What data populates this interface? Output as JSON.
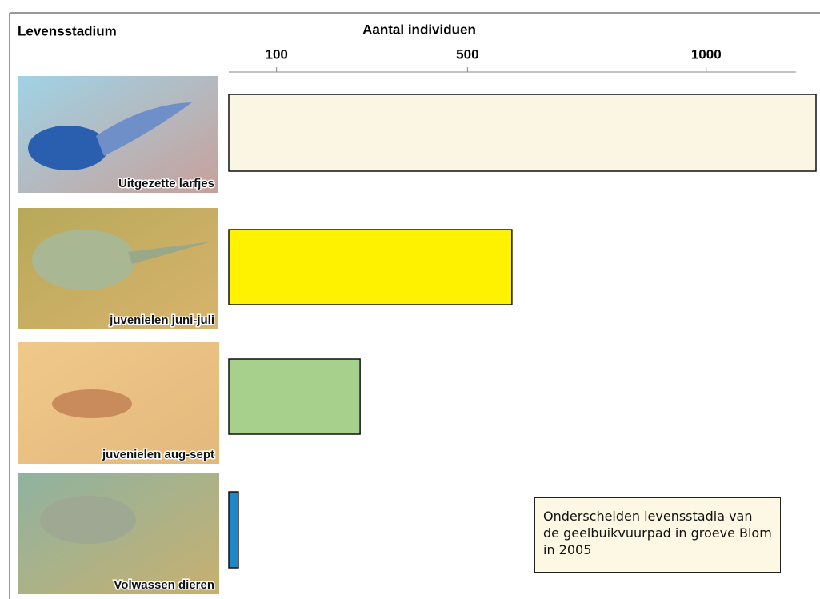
{
  "chart_data": {
    "type": "bar",
    "orientation": "horizontal",
    "category_header": "Levensstadium",
    "x_label": "Aantal individuen",
    "categories": [
      "Uitgezette larfjes",
      "juvenielen juni-juli",
      "juvenielen aug-sept",
      "Volwassen dieren"
    ],
    "values": [
      1230,
      593,
      275,
      20
    ],
    "colors": [
      "#fbf6e4",
      "#fff200",
      "#a8d08d",
      "#1f88c8"
    ],
    "xlim": [
      0,
      1230
    ],
    "xticks": [
      100,
      500,
      1000
    ],
    "note": "Onderscheiden levensstadia van de geelbuikvuurpad in groeve Blom in 2005"
  }
}
